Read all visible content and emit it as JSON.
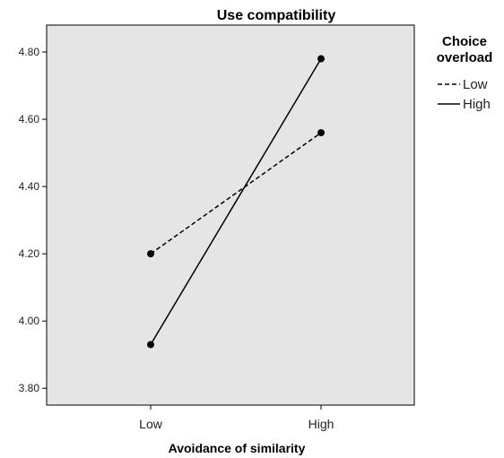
{
  "chart_data": {
    "type": "line",
    "title": "Use compatibility",
    "xlabel": "Avoidance of similarity",
    "ylabel": "",
    "categories": [
      "Low",
      "High"
    ],
    "ylim": [
      3.75,
      4.88
    ],
    "yticks": [
      "3.80",
      "4.00",
      "4.20",
      "4.40",
      "4.60",
      "4.80"
    ],
    "legend": {
      "title_lines": [
        "Choice",
        "overload"
      ],
      "placement": "right"
    },
    "series": [
      {
        "name": "Low",
        "values": [
          4.2,
          4.56
        ],
        "line_style": "dashed"
      },
      {
        "name": "High",
        "values": [
          3.93,
          4.78
        ],
        "line_style": "solid"
      }
    ],
    "plot_background": "#e5e5e5",
    "line_color": "#000000"
  }
}
